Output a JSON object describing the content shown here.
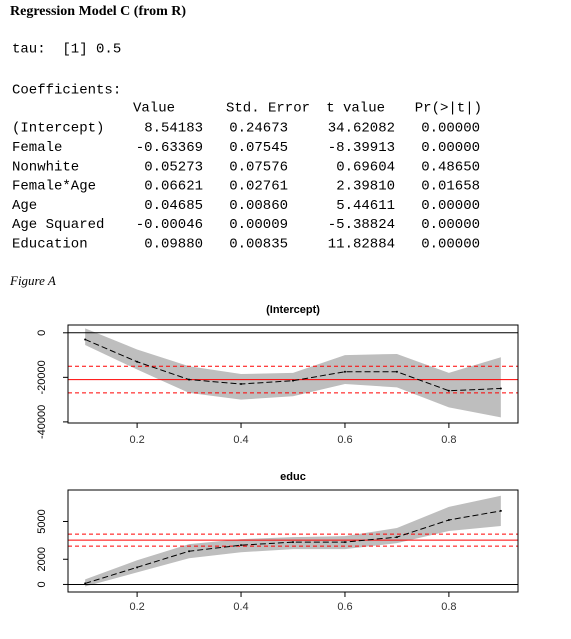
{
  "header": {
    "title": "Regression Model C (from R)"
  },
  "tau": "tau:  [1] 0.5",
  "coefficients": {
    "title": "Coefficients:",
    "columns": [
      "Value",
      "Std. Error",
      "t value",
      "Pr(>|t|)"
    ],
    "rows": [
      [
        "(Intercept)",
        "8.54183",
        "0.24673",
        "34.62082",
        "0.00000"
      ],
      [
        "Female",
        "-0.63369",
        "0.07545",
        "-8.39913",
        "0.00000"
      ],
      [
        "Nonwhite",
        "0.05273",
        "0.07576",
        "0.69604",
        "0.48650"
      ],
      [
        "Female*Age",
        "0.06621",
        "0.02761",
        "2.39810",
        "0.01658"
      ],
      [
        "Age",
        "0.04685",
        "0.00860",
        "5.44611",
        "0.00000"
      ],
      [
        "Age Squared",
        "-0.00046",
        "0.00009",
        "-5.38824",
        "0.00000"
      ],
      [
        "Education",
        "0.09880",
        "0.00835",
        "11.82884",
        "0.00000"
      ]
    ]
  },
  "figure_label": "Figure A",
  "chart_data": [
    {
      "type": "line",
      "title": "(Intercept)",
      "x": [
        0.1,
        0.2,
        0.3,
        0.4,
        0.5,
        0.6,
        0.7,
        0.8,
        0.9
      ],
      "values": [
        -3000,
        -13000,
        -21000,
        -23000,
        -21500,
        -17500,
        -17500,
        -26000,
        -25000
      ],
      "upper": [
        2000,
        -7500,
        -15000,
        -18500,
        -18000,
        -10000,
        -9500,
        -18000,
        -11000
      ],
      "lower": [
        -5500,
        -16500,
        -27000,
        -30000,
        -28500,
        -23000,
        -24500,
        -33500,
        -38000
      ],
      "reference": -21000,
      "reference_upper": -15000,
      "reference_lower": -27000,
      "baseline": 0,
      "xlim": [
        0.067,
        0.933
      ],
      "xticks": [
        0.2,
        0.4,
        0.6,
        0.8
      ],
      "ylim": [
        -40500,
        3500
      ],
      "yticks": [
        0,
        -20000,
        -40000
      ],
      "band_color": "#bebebe",
      "line_color": "#000000",
      "reference_color": "#ff0000"
    },
    {
      "type": "line",
      "title": "educ",
      "x": [
        0.1,
        0.2,
        0.3,
        0.4,
        0.5,
        0.6,
        0.7,
        0.8,
        0.9
      ],
      "values": [
        80,
        1360,
        2640,
        3120,
        3360,
        3360,
        3760,
        5120,
        5840
      ],
      "upper": [
        400,
        1920,
        3200,
        3600,
        3760,
        3840,
        4480,
        6160,
        7040
      ],
      "lower": [
        -160,
        960,
        2080,
        2560,
        2800,
        2800,
        3280,
        4240,
        4640
      ],
      "reference": 3520,
      "reference_upper": 4000,
      "reference_lower": 3040,
      "baseline": 0,
      "xlim": [
        0.067,
        0.933
      ],
      "xticks": [
        0.2,
        0.4,
        0.6,
        0.8
      ],
      "ylim": [
        -600,
        7500
      ],
      "yticks": [
        0,
        2000,
        5000
      ],
      "band_color": "#bebebe",
      "line_color": "#000000",
      "reference_color": "#ff0000"
    }
  ]
}
